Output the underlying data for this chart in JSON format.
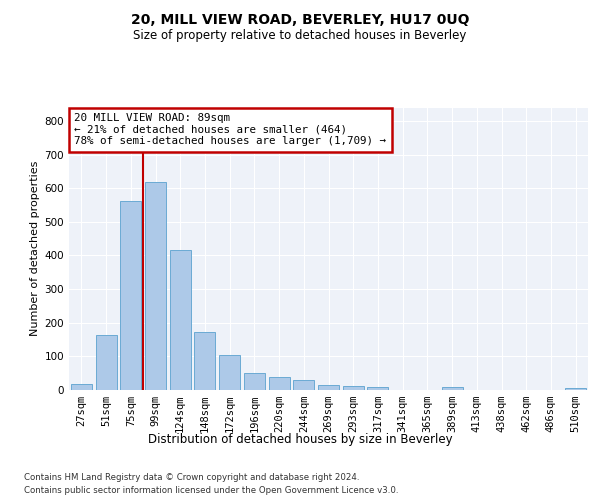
{
  "title": "20, MILL VIEW ROAD, BEVERLEY, HU17 0UQ",
  "subtitle": "Size of property relative to detached houses in Beverley",
  "xlabel": "Distribution of detached houses by size in Beverley",
  "ylabel": "Number of detached properties",
  "footnote1": "Contains HM Land Registry data © Crown copyright and database right 2024.",
  "footnote2": "Contains public sector information licensed under the Open Government Licence v3.0.",
  "categories": [
    "27sqm",
    "51sqm",
    "75sqm",
    "99sqm",
    "124sqm",
    "148sqm",
    "172sqm",
    "196sqm",
    "220sqm",
    "244sqm",
    "269sqm",
    "293sqm",
    "317sqm",
    "341sqm",
    "365sqm",
    "389sqm",
    "413sqm",
    "438sqm",
    "462sqm",
    "486sqm",
    "510sqm"
  ],
  "values": [
    18,
    165,
    562,
    617,
    415,
    172,
    104,
    51,
    38,
    30,
    15,
    13,
    10,
    0,
    0,
    8,
    0,
    0,
    0,
    0,
    7
  ],
  "bar_color": "#adc9e8",
  "bar_edge_color": "#6aaad4",
  "marker_bin_index": 2,
  "marker_color": "#c00000",
  "annotation_line1": "20 MILL VIEW ROAD: 89sqm",
  "annotation_line2": "← 21% of detached houses are smaller (464)",
  "annotation_line3": "78% of semi-detached houses are larger (1,709) →",
  "annotation_box_color": "#c00000",
  "ylim": [
    0,
    840
  ],
  "yticks": [
    0,
    100,
    200,
    300,
    400,
    500,
    600,
    700,
    800
  ],
  "background_color": "#eef2f9",
  "grid_color": "#ffffff",
  "fig_background": "#ffffff",
  "title_fontsize": 10,
  "subtitle_fontsize": 8.5,
  "ylabel_fontsize": 8,
  "xlabel_fontsize": 8.5,
  "tick_fontsize": 7.5,
  "footnote_fontsize": 6.2
}
